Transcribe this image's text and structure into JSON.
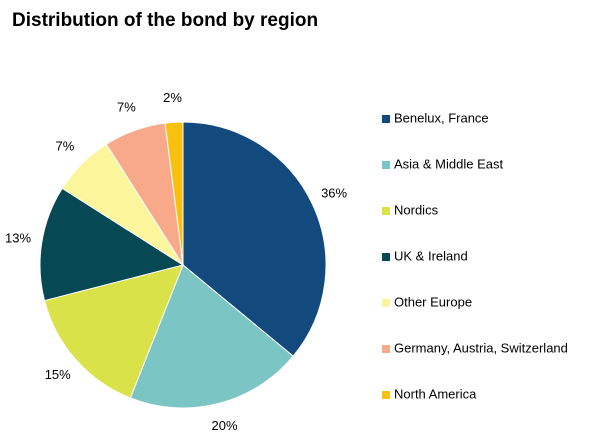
{
  "chart_data": {
    "type": "pie",
    "title": "Distribution of the bond by region",
    "categories": [
      "Benelux, France",
      "Asia & Middle East",
      "Nordics",
      "UK & Ireland",
      "Other Europe",
      "Germany, Austria, Switzerland",
      "North America"
    ],
    "values": [
      36,
      20,
      15,
      13,
      7,
      7,
      2
    ],
    "value_labels": [
      "36%",
      "20%",
      "15%",
      "13%",
      "7%",
      "7%",
      "2%"
    ],
    "colors": [
      "#124a7d",
      "#7bc6c4",
      "#d9e249",
      "#064954",
      "#fbf59b",
      "#f8a98a",
      "#f9c00f"
    ],
    "legend": "right"
  }
}
